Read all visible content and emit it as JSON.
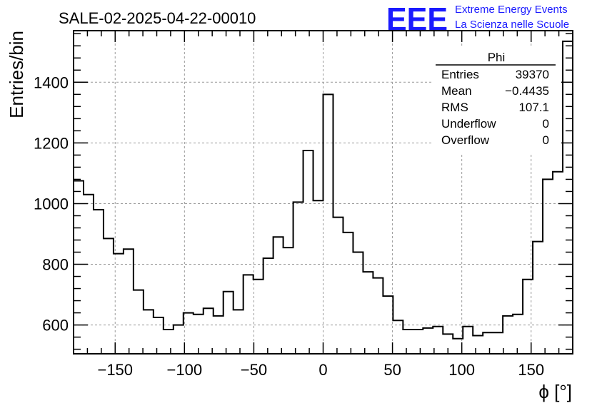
{
  "header": {
    "run_title": "SALE-02-2025-04-22-00010",
    "logo_text": "EEE",
    "logo_line1": "Extreme Energy Events",
    "logo_line2": "La Scienza nelle Scuole",
    "logo_color": "#1a1aff"
  },
  "stats_box": {
    "title": "Phi",
    "rows": [
      {
        "label": "Entries",
        "value": "39370"
      },
      {
        "label": "Mean",
        "value": "−0.4435"
      },
      {
        "label": "RMS",
        "value": "107.1"
      },
      {
        "label": "Underflow",
        "value": "0"
      },
      {
        "label": "Overflow",
        "value": "0"
      }
    ]
  },
  "chart_data": {
    "type": "histogram",
    "title": "",
    "xlabel": "ϕ [°]",
    "ylabel": "Entries/bin",
    "xlim": [
      -180,
      180
    ],
    "ylim": [
      505,
      1570
    ],
    "bin_width": 7.2,
    "grid": true,
    "x_ticks": [
      -150,
      -100,
      -50,
      0,
      50,
      100,
      150
    ],
    "x_tick_labels": [
      "−150",
      "−100",
      "−50",
      "0",
      "50",
      "100",
      "150"
    ],
    "y_ticks": [
      600,
      800,
      1000,
      1200,
      1400
    ],
    "y_tick_labels": [
      "600",
      "800",
      "1000",
      "1200",
      "1400"
    ],
    "bin_edges_start": -180,
    "values": [
      1075,
      1030,
      980,
      885,
      835,
      850,
      715,
      650,
      625,
      585,
      600,
      640,
      635,
      655,
      630,
      710,
      650,
      765,
      750,
      820,
      890,
      855,
      1005,
      1175,
      1010,
      1360,
      955,
      905,
      840,
      775,
      755,
      695,
      615,
      585,
      585,
      590,
      595,
      570,
      555,
      595,
      565,
      575,
      575,
      630,
      635,
      750,
      875,
      1080,
      1105,
      1535
    ],
    "line_color": "#000000"
  }
}
